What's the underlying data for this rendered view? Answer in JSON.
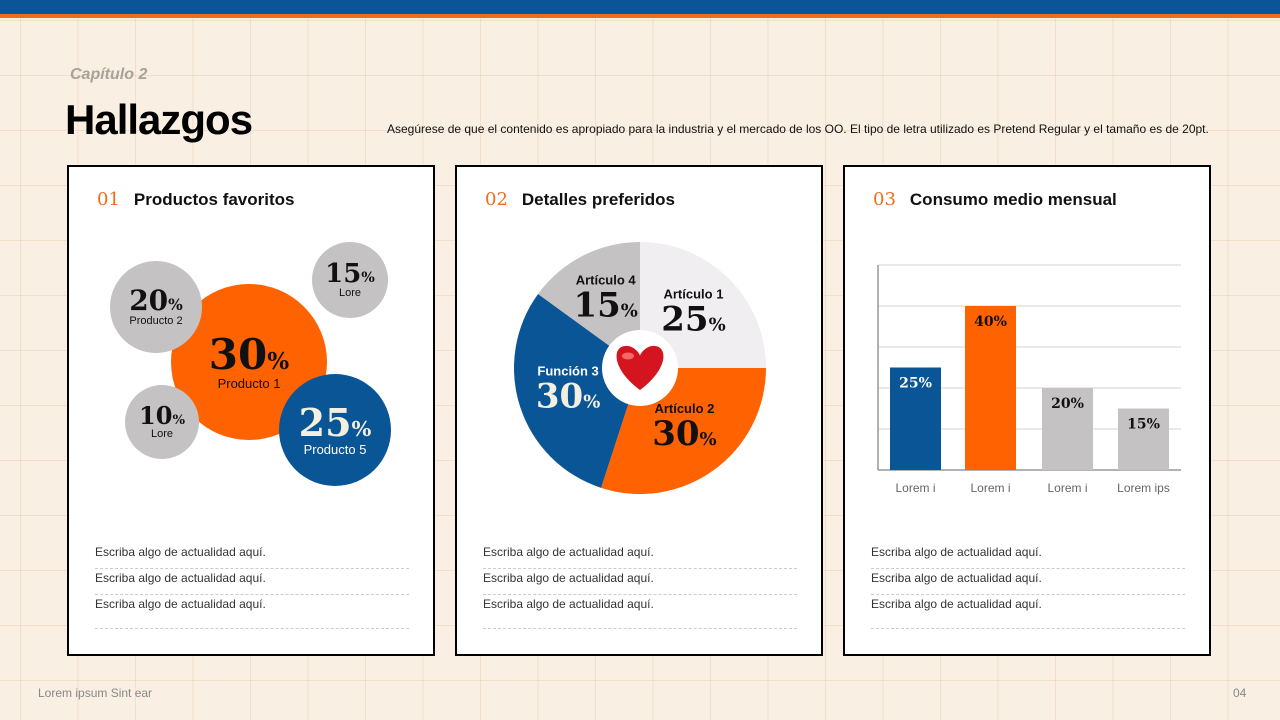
{
  "header": {
    "chapter": "Capítulo 2",
    "title": "Hallazgos",
    "description": "Asegúrese de que el contenido es apropiado para la industria y el mercado de los OO. El tipo de letra utilizado es Pretend Regular y el tamaño es de 20pt."
  },
  "colors": {
    "blue": "#0a5596",
    "orange": "#ff6200",
    "gray": "#c4c2c3",
    "light": "#f0eef0"
  },
  "cards": [
    {
      "number": "01",
      "title": "Productos favoritos",
      "notes": [
        "Escriba algo de actualidad aquí.",
        "Escriba algo de actualidad aquí.",
        "Escriba algo de actualidad aquí."
      ]
    },
    {
      "number": "02",
      "title": "Detalles preferidos",
      "notes": [
        "Escriba algo de actualidad aquí.",
        "Escriba algo de actualidad aquí.",
        "Escriba algo de actualidad aquí."
      ]
    },
    {
      "number": "03",
      "title": "Consumo medio mensual",
      "notes": [
        "Escriba algo de actualidad aquí.",
        "Escriba algo de actualidad aquí.",
        "Escriba algo de actualidad aquí."
      ]
    }
  ],
  "chart_data": [
    {
      "type": "bubble",
      "items": [
        {
          "label": "Producto 1",
          "value": 30,
          "display": "30",
          "color": "orange"
        },
        {
          "label": "Producto 2",
          "value": 20,
          "display": "20",
          "color": "gray"
        },
        {
          "label": "Lore",
          "value": 15,
          "display": "15",
          "color": "gray"
        },
        {
          "label": "Lore",
          "value": 10,
          "display": "10",
          "color": "gray"
        },
        {
          "label": "Producto 5",
          "value": 25,
          "display": "25",
          "color": "blue"
        }
      ],
      "unit": "%"
    },
    {
      "type": "pie",
      "center_icon": "heart-icon",
      "slices": [
        {
          "label": "Artículo 1",
          "value": 25,
          "display": "25",
          "color": "light"
        },
        {
          "label": "Artículo 2",
          "value": 30,
          "display": "30",
          "color": "orange"
        },
        {
          "label": "Función 3",
          "value": 30,
          "display": "30",
          "color": "blue"
        },
        {
          "label": "Artículo 4",
          "value": 15,
          "display": "15",
          "color": "gray"
        }
      ],
      "unit": "%"
    },
    {
      "type": "bar",
      "categories": [
        "Lorem i",
        "Lorem i",
        "Lorem i",
        "Lorem ips"
      ],
      "values": [
        25,
        40,
        20,
        15
      ],
      "labels": [
        "25%",
        "40%",
        "20%",
        "15%"
      ],
      "colors": [
        "blue",
        "orange",
        "gray",
        "gray"
      ],
      "ylim": [
        0,
        50
      ],
      "grid": true
    }
  ],
  "footer": {
    "left": "Lorem ipsum Sint ear",
    "page": "04"
  }
}
